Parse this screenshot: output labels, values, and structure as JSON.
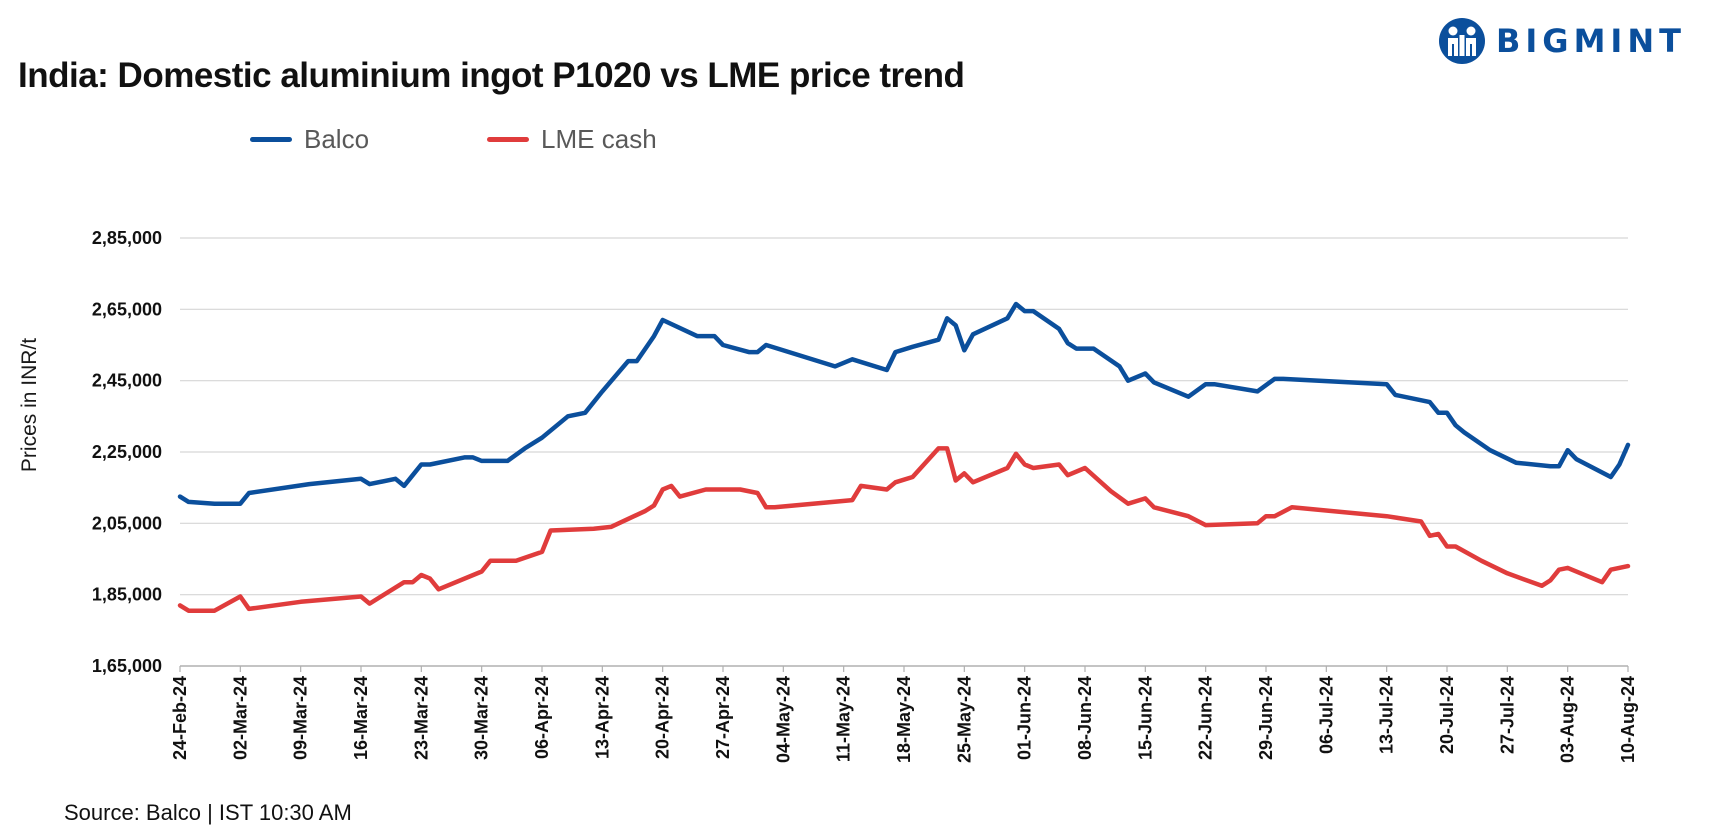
{
  "brand": {
    "name": "BIGMINT",
    "color": "#0b4f9c"
  },
  "source_note": "Source: Balco | IST 10:30 AM",
  "chart_data": {
    "type": "line",
    "title": "India: Domestic aluminium ingot P1020 vs LME price trend",
    "ylabel": "Prices in INR/t",
    "ylim": [
      165000,
      285000
    ],
    "y_ticks": [
      165000,
      185000,
      205000,
      225000,
      245000,
      265000,
      285000
    ],
    "y_tick_labels": [
      "1,65,000",
      "1,85,000",
      "2,05,000",
      "2,25,000",
      "2,45,000",
      "2,65,000",
      "2,85,000"
    ],
    "x_range": [
      "2024-02-24",
      "2024-08-10"
    ],
    "x_tick_labels": [
      "24-Feb-24",
      "02-Mar-24",
      "09-Mar-24",
      "16-Mar-24",
      "23-Mar-24",
      "30-Mar-24",
      "06-Apr-24",
      "13-Apr-24",
      "20-Apr-24",
      "27-Apr-24",
      "04-May-24",
      "11-May-24",
      "18-May-24",
      "25-May-24",
      "01-Jun-24",
      "08-Jun-24",
      "15-Jun-24",
      "22-Jun-24",
      "29-Jun-24",
      "06-Jul-24",
      "13-Jul-24",
      "20-Jul-24",
      "27-Jul-24",
      "03-Aug-24",
      "10-Aug-24"
    ],
    "grid": true,
    "legend_position": "top-left",
    "series": [
      {
        "name": "Balco",
        "color": "#0b4f9c",
        "points": [
          [
            "2024-02-24",
            212500
          ],
          [
            "2024-02-25",
            211000
          ],
          [
            "2024-02-28",
            210500
          ],
          [
            "2024-03-02",
            210500
          ],
          [
            "2024-03-03",
            213500
          ],
          [
            "2024-03-10",
            216000
          ],
          [
            "2024-03-16",
            217500
          ],
          [
            "2024-03-17",
            216000
          ],
          [
            "2024-03-20",
            217500
          ],
          [
            "2024-03-21",
            215500
          ],
          [
            "2024-03-22",
            218500
          ],
          [
            "2024-03-23",
            221500
          ],
          [
            "2024-03-24",
            221500
          ],
          [
            "2024-03-28",
            223500
          ],
          [
            "2024-03-29",
            223500
          ],
          [
            "2024-03-30",
            222500
          ],
          [
            "2024-04-02",
            222500
          ],
          [
            "2024-04-04",
            226000
          ],
          [
            "2024-04-06",
            229000
          ],
          [
            "2024-04-09",
            235000
          ],
          [
            "2024-04-11",
            236000
          ],
          [
            "2024-04-13",
            242000
          ],
          [
            "2024-04-16",
            250500
          ],
          [
            "2024-04-17",
            250500
          ],
          [
            "2024-04-19",
            257500
          ],
          [
            "2024-04-20",
            262000
          ],
          [
            "2024-04-24",
            257500
          ],
          [
            "2024-04-26",
            257500
          ],
          [
            "2024-04-27",
            255000
          ],
          [
            "2024-04-30",
            253000
          ],
          [
            "2024-05-01",
            253000
          ],
          [
            "2024-05-02",
            255000
          ],
          [
            "2024-05-10",
            249000
          ],
          [
            "2024-05-12",
            251000
          ],
          [
            "2024-05-16",
            248000
          ],
          [
            "2024-05-17",
            253000
          ],
          [
            "2024-05-19",
            254500
          ],
          [
            "2024-05-22",
            256500
          ],
          [
            "2024-05-23",
            262500
          ],
          [
            "2024-05-24",
            260500
          ],
          [
            "2024-05-25",
            253500
          ],
          [
            "2024-05-26",
            258000
          ],
          [
            "2024-05-30",
            262500
          ],
          [
            "2024-05-31",
            266500
          ],
          [
            "2024-06-01",
            264500
          ],
          [
            "2024-06-02",
            264500
          ],
          [
            "2024-06-05",
            259500
          ],
          [
            "2024-06-06",
            255500
          ],
          [
            "2024-06-07",
            254000
          ],
          [
            "2024-06-09",
            254000
          ],
          [
            "2024-06-12",
            249000
          ],
          [
            "2024-06-13",
            245000
          ],
          [
            "2024-06-15",
            247000
          ],
          [
            "2024-06-16",
            244500
          ],
          [
            "2024-06-20",
            240500
          ],
          [
            "2024-06-22",
            244000
          ],
          [
            "2024-06-23",
            244000
          ],
          [
            "2024-06-28",
            242000
          ],
          [
            "2024-06-30",
            245500
          ],
          [
            "2024-07-01",
            245500
          ],
          [
            "2024-07-13",
            244000
          ],
          [
            "2024-07-14",
            241000
          ],
          [
            "2024-07-18",
            239000
          ],
          [
            "2024-07-19",
            236000
          ],
          [
            "2024-07-20",
            236000
          ],
          [
            "2024-07-21",
            232500
          ],
          [
            "2024-07-22",
            230500
          ],
          [
            "2024-07-25",
            225500
          ],
          [
            "2024-07-28",
            222000
          ],
          [
            "2024-08-01",
            221000
          ],
          [
            "2024-08-02",
            221000
          ],
          [
            "2024-08-03",
            225500
          ],
          [
            "2024-08-04",
            223000
          ],
          [
            "2024-08-08",
            218000
          ],
          [
            "2024-08-09",
            221500
          ],
          [
            "2024-08-10",
            227000
          ]
        ]
      },
      {
        "name": "LME cash",
        "color": "#e03c3c",
        "points": [
          [
            "2024-02-24",
            182000
          ],
          [
            "2024-02-25",
            180500
          ],
          [
            "2024-02-28",
            180500
          ],
          [
            "2024-03-02",
            184500
          ],
          [
            "2024-03-03",
            181000
          ],
          [
            "2024-03-09",
            183000
          ],
          [
            "2024-03-16",
            184500
          ],
          [
            "2024-03-17",
            182500
          ],
          [
            "2024-03-21",
            188500
          ],
          [
            "2024-03-22",
            188500
          ],
          [
            "2024-03-23",
            190500
          ],
          [
            "2024-03-24",
            189500
          ],
          [
            "2024-03-25",
            186500
          ],
          [
            "2024-03-30",
            191500
          ],
          [
            "2024-03-31",
            194500
          ],
          [
            "2024-04-03",
            194500
          ],
          [
            "2024-04-06",
            197000
          ],
          [
            "2024-04-07",
            203000
          ],
          [
            "2024-04-12",
            203500
          ],
          [
            "2024-04-14",
            204000
          ],
          [
            "2024-04-18",
            208500
          ],
          [
            "2024-04-19",
            210000
          ],
          [
            "2024-04-20",
            214500
          ],
          [
            "2024-04-21",
            215500
          ],
          [
            "2024-04-22",
            212500
          ],
          [
            "2024-04-25",
            214500
          ],
          [
            "2024-04-29",
            214500
          ],
          [
            "2024-05-01",
            213500
          ],
          [
            "2024-05-02",
            209500
          ],
          [
            "2024-05-03",
            209500
          ],
          [
            "2024-05-12",
            211500
          ],
          [
            "2024-05-13",
            215500
          ],
          [
            "2024-05-16",
            214500
          ],
          [
            "2024-05-17",
            216500
          ],
          [
            "2024-05-19",
            218000
          ],
          [
            "2024-05-22",
            226000
          ],
          [
            "2024-05-23",
            226000
          ],
          [
            "2024-05-24",
            217000
          ],
          [
            "2024-05-25",
            219000
          ],
          [
            "2024-05-26",
            216500
          ],
          [
            "2024-05-30",
            220500
          ],
          [
            "2024-05-31",
            224500
          ],
          [
            "2024-06-01",
            221500
          ],
          [
            "2024-06-02",
            220500
          ],
          [
            "2024-06-05",
            221500
          ],
          [
            "2024-06-06",
            218500
          ],
          [
            "2024-06-08",
            220500
          ],
          [
            "2024-06-11",
            214000
          ],
          [
            "2024-06-13",
            210500
          ],
          [
            "2024-06-15",
            212000
          ],
          [
            "2024-06-16",
            209500
          ],
          [
            "2024-06-20",
            207000
          ],
          [
            "2024-06-22",
            204500
          ],
          [
            "2024-06-28",
            205000
          ],
          [
            "2024-06-29",
            207000
          ],
          [
            "2024-06-30",
            207000
          ],
          [
            "2024-07-02",
            209500
          ],
          [
            "2024-07-13",
            207000
          ],
          [
            "2024-07-17",
            205500
          ],
          [
            "2024-07-18",
            201500
          ],
          [
            "2024-07-19",
            202000
          ],
          [
            "2024-07-20",
            198500
          ],
          [
            "2024-07-21",
            198500
          ],
          [
            "2024-07-24",
            194500
          ],
          [
            "2024-07-27",
            191000
          ],
          [
            "2024-07-31",
            187500
          ],
          [
            "2024-08-01",
            189000
          ],
          [
            "2024-08-02",
            192000
          ],
          [
            "2024-08-03",
            192500
          ],
          [
            "2024-08-07",
            188500
          ],
          [
            "2024-08-08",
            192000
          ],
          [
            "2024-08-10",
            193000
          ]
        ]
      }
    ]
  }
}
